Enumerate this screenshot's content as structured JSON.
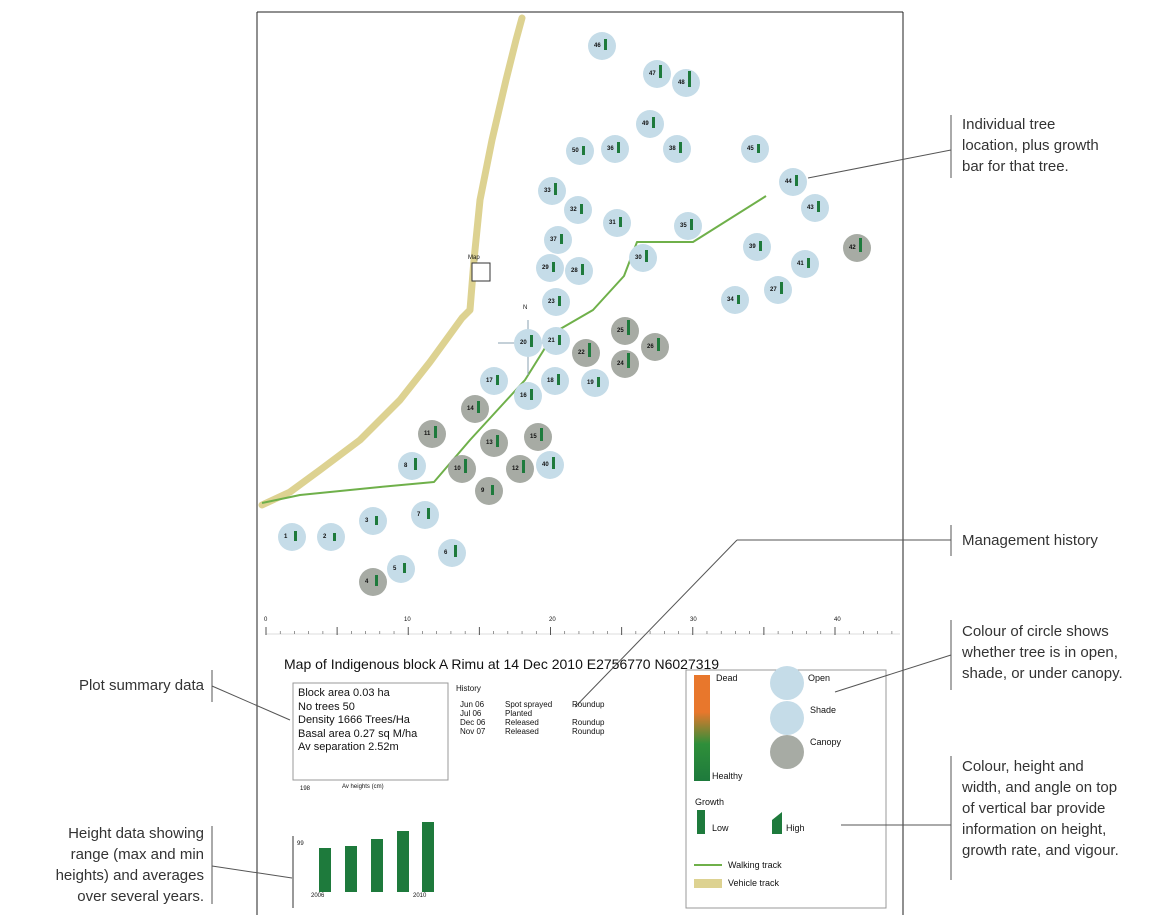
{
  "annotations": {
    "tree_location": [
      "Individual tree",
      "location, plus growth",
      "bar for that tree."
    ],
    "management_history": [
      "Management history"
    ],
    "circle_colour": [
      "Colour of circle shows",
      "whether tree is in open,",
      "shade, or under canopy."
    ],
    "bar_info": [
      "Colour, height and",
      "width, and angle on top",
      "of vertical bar provide",
      "information on height,",
      "growth rate, and vigour."
    ],
    "plot_summary": [
      "Plot summary data"
    ],
    "height_data": [
      "Height data showing",
      "range (max and min",
      "heights) and averages",
      "over several years."
    ]
  },
  "map": {
    "title": "Map of Indigenous block A Rimu at 14 Dec 2010 E2756770 N6027319",
    "scale_labels": [
      "0",
      "10",
      "20",
      "30",
      "40"
    ],
    "map_marker_label": "Map",
    "north_label": "N",
    "trees": [
      {
        "n": "1",
        "shade": "open"
      },
      {
        "n": "2",
        "shade": "open"
      },
      {
        "n": "3",
        "shade": "open"
      },
      {
        "n": "4",
        "shade": "canopy"
      },
      {
        "n": "5",
        "shade": "open"
      },
      {
        "n": "6",
        "shade": "open"
      },
      {
        "n": "7",
        "shade": "open"
      },
      {
        "n": "8",
        "shade": "open"
      },
      {
        "n": "9",
        "shade": "canopy"
      },
      {
        "n": "10",
        "shade": "canopy"
      },
      {
        "n": "11",
        "shade": "canopy"
      },
      {
        "n": "12",
        "shade": "canopy"
      },
      {
        "n": "13",
        "shade": "canopy"
      },
      {
        "n": "14",
        "shade": "canopy"
      },
      {
        "n": "15",
        "shade": "canopy"
      },
      {
        "n": "16",
        "shade": "open"
      },
      {
        "n": "17",
        "shade": "open"
      },
      {
        "n": "18",
        "shade": "open"
      },
      {
        "n": "19",
        "shade": "open"
      },
      {
        "n": "20",
        "shade": "open"
      },
      {
        "n": "21",
        "shade": "open"
      },
      {
        "n": "22",
        "shade": "canopy"
      },
      {
        "n": "23",
        "shade": "open"
      },
      {
        "n": "24",
        "shade": "canopy"
      },
      {
        "n": "25",
        "shade": "canopy"
      },
      {
        "n": "26",
        "shade": "canopy"
      },
      {
        "n": "27",
        "shade": "open"
      },
      {
        "n": "28",
        "shade": "open"
      },
      {
        "n": "29",
        "shade": "open"
      },
      {
        "n": "30",
        "shade": "open"
      },
      {
        "n": "31",
        "shade": "open"
      },
      {
        "n": "32",
        "shade": "open"
      },
      {
        "n": "33",
        "shade": "open"
      },
      {
        "n": "34",
        "shade": "open"
      },
      {
        "n": "35",
        "shade": "open"
      },
      {
        "n": "36",
        "shade": "open"
      },
      {
        "n": "37",
        "shade": "open"
      },
      {
        "n": "38",
        "shade": "open"
      },
      {
        "n": "39",
        "shade": "open"
      },
      {
        "n": "40",
        "shade": "open"
      },
      {
        "n": "41",
        "shade": "open"
      },
      {
        "n": "42",
        "shade": "canopy"
      },
      {
        "n": "43",
        "shade": "open"
      },
      {
        "n": "44",
        "shade": "open"
      },
      {
        "n": "45",
        "shade": "open"
      },
      {
        "n": "46",
        "shade": "open"
      },
      {
        "n": "47",
        "shade": "open"
      },
      {
        "n": "48",
        "shade": "open"
      },
      {
        "n": "49",
        "shade": "open"
      },
      {
        "n": "50",
        "shade": "open"
      }
    ]
  },
  "summary": {
    "lines": [
      "Block area 0.03 ha",
      "No trees 50",
      "Density 1666 Trees/Ha",
      "Basal area 0.27 sq M/ha",
      "Av separation 2.52m"
    ]
  },
  "history": {
    "title": "History",
    "rows": [
      [
        "Jun 06",
        "Spot sprayed",
        "Roundup"
      ],
      [
        "Jul 06",
        "Planted",
        ""
      ],
      [
        "Dec 06",
        "Released",
        "Roundup"
      ],
      [
        "Nov 07",
        "Released",
        "Roundup"
      ]
    ]
  },
  "heights": {
    "top_value": "198",
    "title": "Av heights (cm)",
    "mid_value": "99",
    "year_start": "2006",
    "year_end": "2010"
  },
  "legend": {
    "dead": "Dead",
    "healthy": "Healthy",
    "open": "Open",
    "shade": "Shade",
    "canopy": "Canopy",
    "growth": "Growth",
    "low": "Low",
    "high": "High",
    "walking_track": "Walking track",
    "vehicle_track": "Vehicle track"
  },
  "colors": {
    "open": "#c5dce8",
    "shade": "#c5dce8",
    "canopy": "#a7aba4",
    "bar": "#1e7a3c",
    "walking_track": "#6fb04a",
    "vehicle_track": "#ddd291",
    "dead": "#e8772c",
    "healthy": "#1e7a3c"
  }
}
